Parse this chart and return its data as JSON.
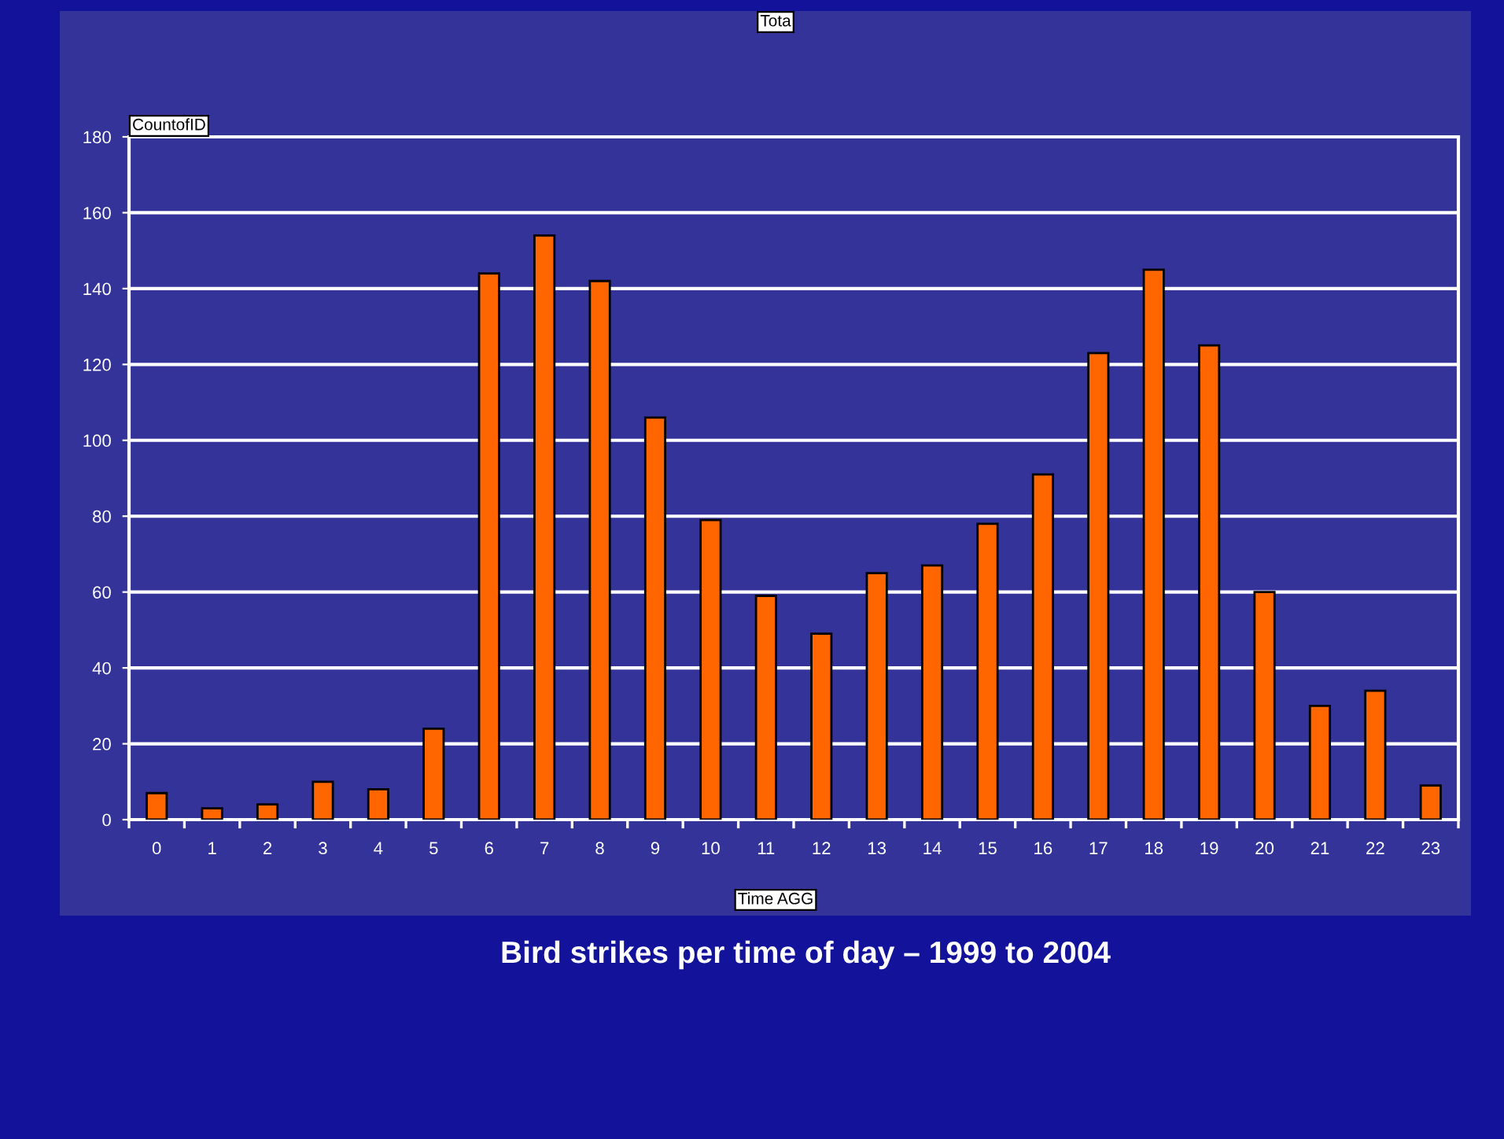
{
  "chart_data": {
    "type": "bar",
    "title": "Tota",
    "subtitle": "Bird strikes per time of day – 1999 to 2004",
    "xlabel": "Time AGG",
    "ylabel": "CountofID",
    "categories": [
      "0",
      "1",
      "2",
      "3",
      "4",
      "5",
      "6",
      "7",
      "8",
      "9",
      "10",
      "11",
      "12",
      "13",
      "14",
      "15",
      "16",
      "17",
      "18",
      "19",
      "20",
      "21",
      "22",
      "23"
    ],
    "values": [
      7,
      3,
      4,
      10,
      8,
      24,
      144,
      154,
      142,
      106,
      79,
      59,
      49,
      65,
      67,
      78,
      91,
      123,
      145,
      125,
      60,
      30,
      34,
      9
    ],
    "color": "#ff6600",
    "ylim": [
      0,
      180
    ],
    "yticks": [
      0,
      20,
      40,
      60,
      80,
      100,
      120,
      140,
      160,
      180
    ],
    "grid": "y"
  }
}
